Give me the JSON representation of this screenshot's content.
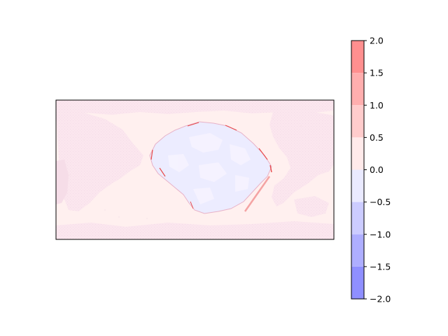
{
  "map": {
    "projection": "plate-carree",
    "axis_ticks_visible": false,
    "feature": "anomaly contour field with a large closed region in the central Pacific"
  },
  "colorbar": {
    "orientation": "vertical",
    "range": [
      -2.0,
      2.0
    ],
    "levels": [
      -2.0,
      -1.5,
      -1.0,
      -0.5,
      0.0,
      0.5,
      1.0,
      1.5,
      2.0
    ],
    "tick_labels": [
      "2.0",
      "1.5",
      "1.0",
      "0.5",
      "0.0",
      "−0.5",
      "−1.0",
      "−1.5",
      "−2.0"
    ],
    "band_colors": [
      "#ff8f8f",
      "#ffaeae",
      "#ffcccc",
      "#ffeaea",
      "#eaeaff",
      "#ccccff",
      "#aeaeff",
      "#8f8fff"
    ],
    "colormap": "bwr"
  },
  "colors": {
    "field_positive_weak": "#fff0ef",
    "field_land": "#fbe7ee",
    "field_negative_weak": "#ececff",
    "edge_red": "#e84a4a"
  }
}
